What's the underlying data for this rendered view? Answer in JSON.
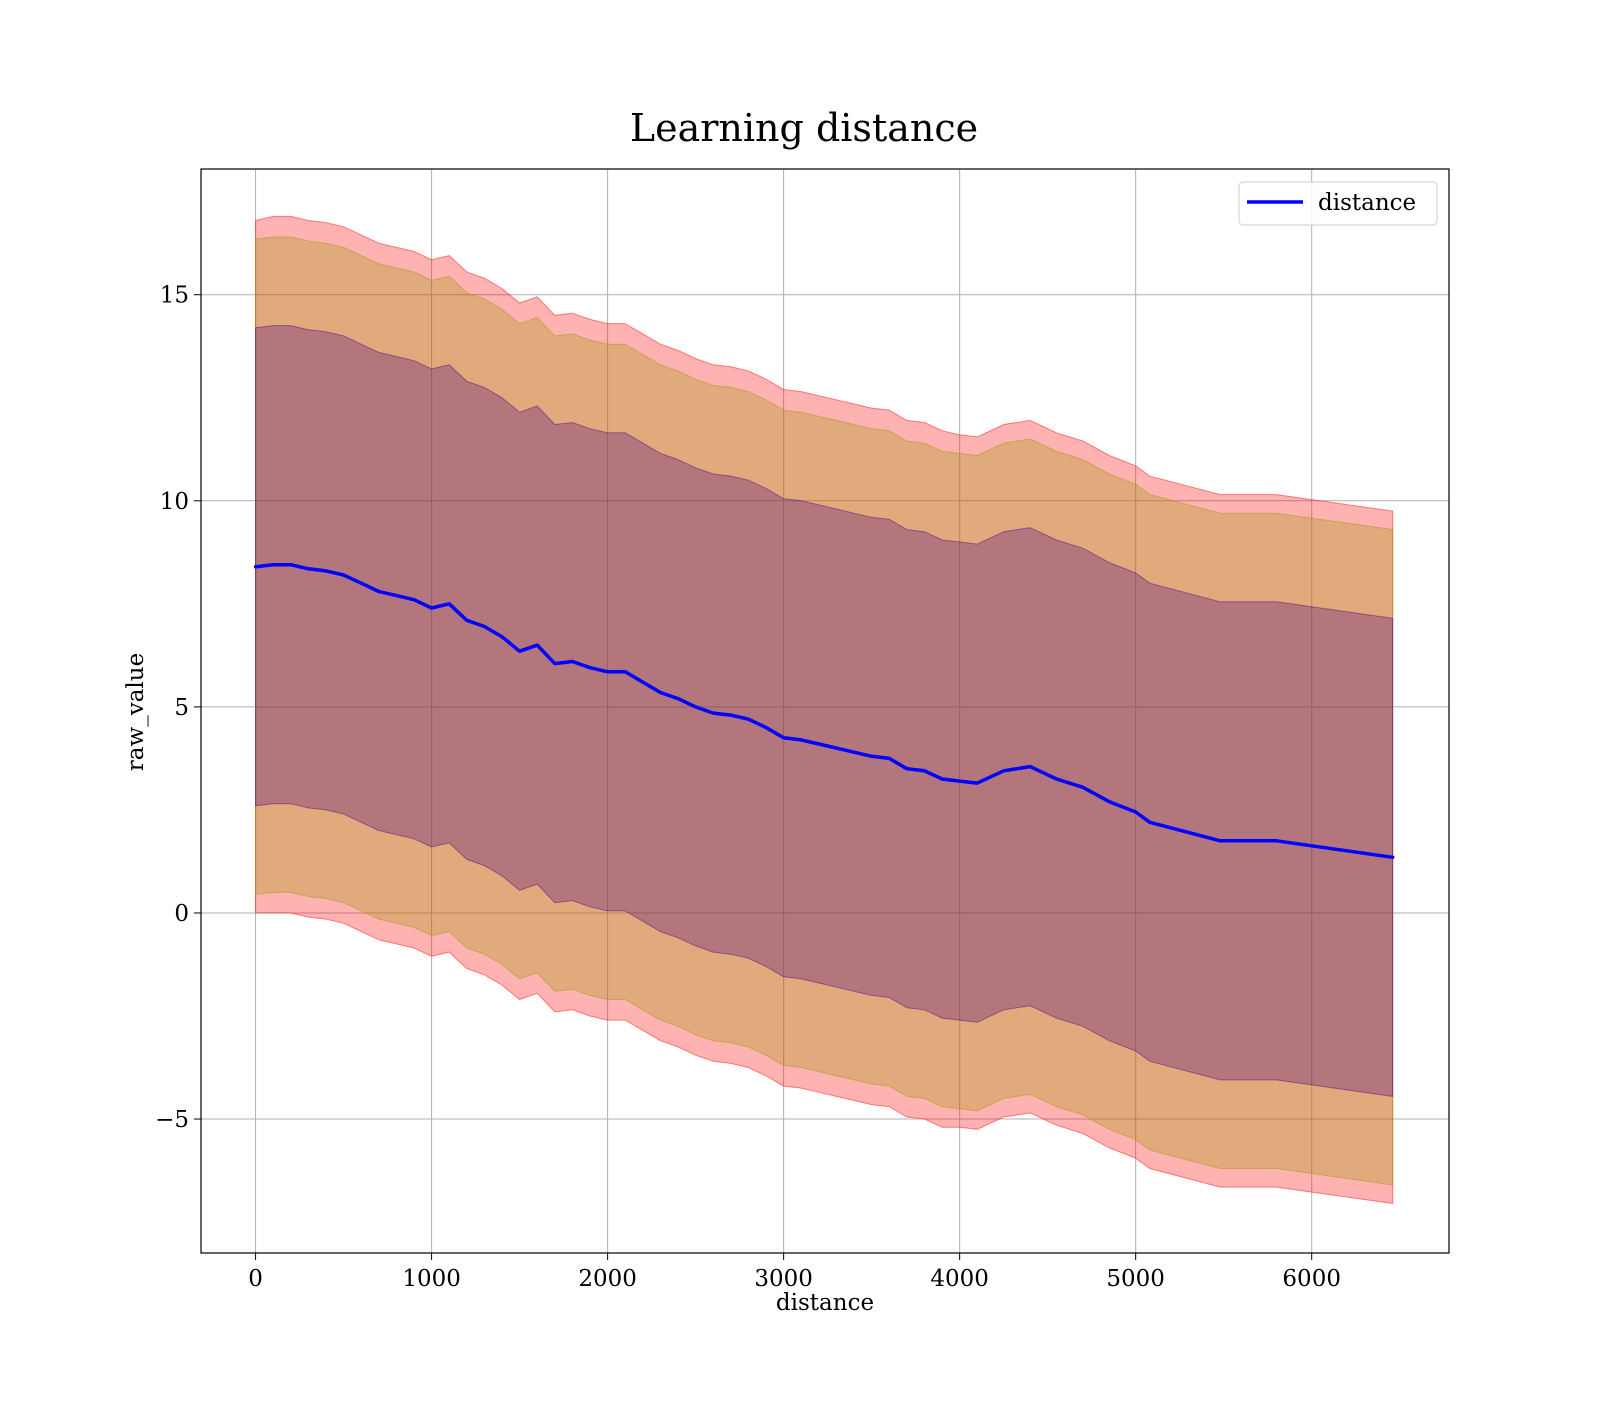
{
  "chart_data": {
    "type": "line",
    "title": "Learning distance",
    "xlabel": "distance",
    "ylabel": "raw_value",
    "xlim": [
      -310,
      6780
    ],
    "ylim": [
      -8.25,
      18.05
    ],
    "xticks": [
      {
        "value": 0,
        "label": "0"
      },
      {
        "value": 1000,
        "label": "1000"
      },
      {
        "value": 2000,
        "label": "2000"
      },
      {
        "value": 3000,
        "label": "3000"
      },
      {
        "value": 4000,
        "label": "4000"
      },
      {
        "value": 5000,
        "label": "5000"
      },
      {
        "value": 6000,
        "label": "6000"
      }
    ],
    "yticks": [
      {
        "value": -5,
        "label": "−5"
      },
      {
        "value": 0,
        "label": "0"
      },
      {
        "value": 5,
        "label": "5"
      },
      {
        "value": 10,
        "label": "10"
      },
      {
        "value": 15,
        "label": "15"
      }
    ],
    "grid": true,
    "legend": {
      "position": "top-right",
      "entries": [
        {
          "label": "distance",
          "color": "#0000ff"
        }
      ]
    },
    "x": [
      0,
      100,
      200,
      300,
      400,
      500,
      600,
      700,
      800,
      900,
      1000,
      1100,
      1200,
      1300,
      1400,
      1500,
      1600,
      1700,
      1800,
      1900,
      2000,
      2100,
      2200,
      2300,
      2400,
      2500,
      2600,
      2700,
      2800,
      2900,
      3000,
      3100,
      3200,
      3300,
      3400,
      3500,
      3600,
      3700,
      3800,
      3900,
      4000,
      4100,
      4250,
      4400,
      4550,
      4700,
      4850,
      5000,
      5080,
      5480,
      5800,
      6460
    ],
    "series": [
      {
        "name": "distance",
        "color": "#0000ff",
        "values": [
          8.4,
          8.45,
          8.45,
          8.35,
          8.3,
          8.2,
          8.0,
          7.8,
          7.7,
          7.6,
          7.4,
          7.5,
          7.1,
          6.95,
          6.7,
          6.35,
          6.5,
          6.05,
          6.1,
          5.95,
          5.85,
          5.85,
          5.6,
          5.35,
          5.2,
          5.0,
          4.85,
          4.8,
          4.7,
          4.5,
          4.25,
          4.2,
          4.1,
          4.0,
          3.9,
          3.8,
          3.75,
          3.5,
          3.45,
          3.25,
          3.2,
          3.15,
          3.45,
          3.55,
          3.25,
          3.05,
          2.7,
          2.45,
          2.2,
          1.75,
          1.75,
          1.35
        ]
      }
    ],
    "bands": [
      {
        "name": "outer",
        "color": "#ff0000",
        "opacity": 0.3,
        "halfwidth": [
          8.4,
          8.45,
          8.45,
          8.45,
          8.45,
          8.45,
          8.45,
          8.45,
          8.45,
          8.45,
          8.45,
          8.45,
          8.45,
          8.45,
          8.45,
          8.45,
          8.45,
          8.45,
          8.45,
          8.45,
          8.45,
          8.45,
          8.45,
          8.45,
          8.45,
          8.45,
          8.45,
          8.45,
          8.45,
          8.45,
          8.45,
          8.45,
          8.45,
          8.45,
          8.45,
          8.45,
          8.45,
          8.45,
          8.45,
          8.45,
          8.4,
          8.4,
          8.4,
          8.4,
          8.4,
          8.4,
          8.4,
          8.4,
          8.4,
          8.4,
          8.4,
          8.4
        ]
      },
      {
        "name": "middle",
        "color": "#999900",
        "opacity": 0.3,
        "halfwidth": [
          7.95,
          7.95,
          7.95,
          7.95,
          7.95,
          7.95,
          7.95,
          7.95,
          7.95,
          7.95,
          7.95,
          7.95,
          7.95,
          7.95,
          7.95,
          7.95,
          7.95,
          7.95,
          7.95,
          7.95,
          7.95,
          7.95,
          7.95,
          7.95,
          7.95,
          7.95,
          7.95,
          7.95,
          7.95,
          7.95,
          7.95,
          7.95,
          7.95,
          7.95,
          7.95,
          7.95,
          7.95,
          7.95,
          7.95,
          7.95,
          7.95,
          7.95,
          7.95,
          7.95,
          7.95,
          7.95,
          7.95,
          7.95,
          7.95,
          7.95,
          7.95,
          7.95
        ]
      },
      {
        "name": "inner",
        "color": "#4b0082",
        "opacity": 0.3,
        "halfwidth": [
          5.8,
          5.8,
          5.8,
          5.8,
          5.8,
          5.8,
          5.8,
          5.8,
          5.8,
          5.8,
          5.8,
          5.8,
          5.8,
          5.8,
          5.8,
          5.8,
          5.8,
          5.8,
          5.8,
          5.8,
          5.8,
          5.8,
          5.8,
          5.8,
          5.8,
          5.8,
          5.8,
          5.8,
          5.8,
          5.8,
          5.8,
          5.8,
          5.8,
          5.8,
          5.8,
          5.8,
          5.8,
          5.8,
          5.8,
          5.8,
          5.8,
          5.8,
          5.8,
          5.8,
          5.8,
          5.8,
          5.8,
          5.8,
          5.8,
          5.8,
          5.8,
          5.8
        ]
      }
    ]
  }
}
